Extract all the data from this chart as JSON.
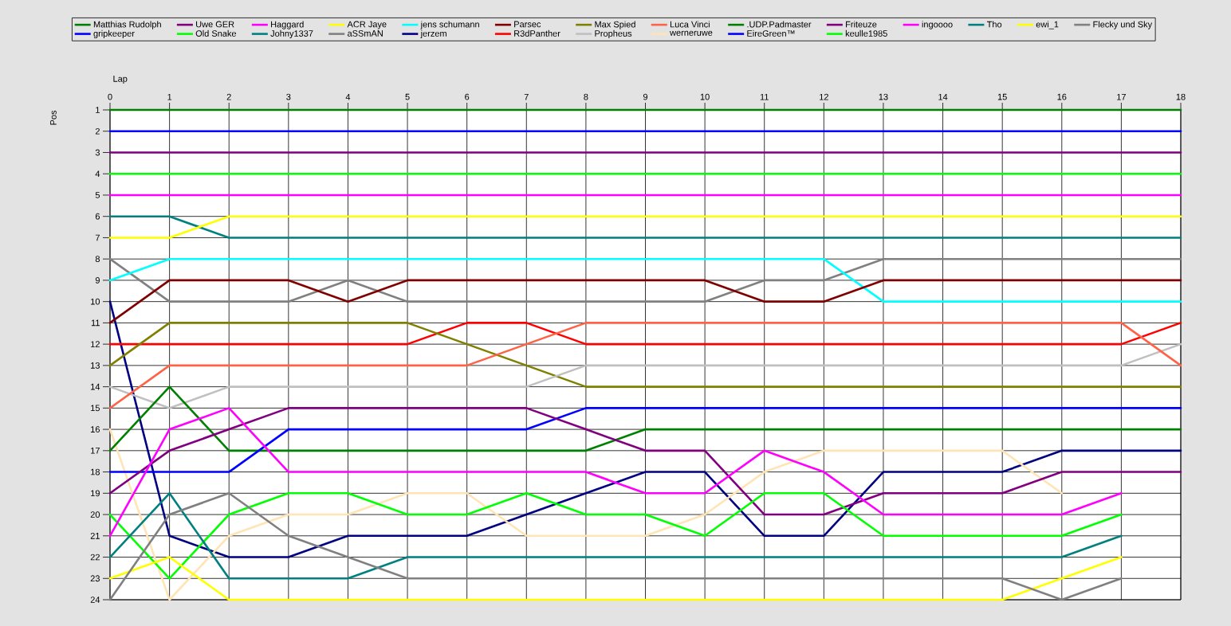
{
  "chart_data": {
    "type": "line",
    "xlabel": "Lap",
    "ylabel": "Pos",
    "x": [
      0,
      1,
      2,
      3,
      4,
      5,
      6,
      7,
      8,
      9,
      10,
      11,
      12,
      13,
      14,
      15,
      16,
      17,
      18
    ],
    "xlim": [
      0,
      18
    ],
    "xticks": [
      0,
      1,
      2,
      3,
      4,
      5,
      6,
      7,
      8,
      9,
      10,
      11,
      12,
      13,
      14,
      15,
      16,
      17,
      18
    ],
    "ylim": [
      24,
      1
    ],
    "yticks": [
      1,
      2,
      3,
      4,
      5,
      6,
      7,
      8,
      9,
      10,
      11,
      12,
      13,
      14,
      15,
      16,
      17,
      18,
      19,
      20,
      21,
      22,
      23,
      24
    ],
    "grid": true,
    "legend": "top",
    "series": [
      {
        "name": "Matthias Rudolph",
        "color": "#008000",
        "values": [
          1,
          1,
          1,
          1,
          1,
          1,
          1,
          1,
          1,
          1,
          1,
          1,
          1,
          1,
          1,
          1,
          1,
          1,
          1
        ]
      },
      {
        "name": "gripkeeper",
        "color": "#0000ff",
        "values": [
          2,
          2,
          2,
          2,
          2,
          2,
          2,
          2,
          2,
          2,
          2,
          2,
          2,
          2,
          2,
          2,
          2,
          2,
          2
        ]
      },
      {
        "name": "Uwe GER",
        "color": "#800080",
        "values": [
          3,
          3,
          3,
          3,
          3,
          3,
          3,
          3,
          3,
          3,
          3,
          3,
          3,
          3,
          3,
          3,
          3,
          3,
          3
        ]
      },
      {
        "name": "Old Snake",
        "color": "#00ff00",
        "values": [
          4,
          4,
          4,
          4,
          4,
          4,
          4,
          4,
          4,
          4,
          4,
          4,
          4,
          4,
          4,
          4,
          4,
          4,
          4
        ]
      },
      {
        "name": "Haggard",
        "color": "#ff00ff",
        "values": [
          5,
          5,
          5,
          5,
          5,
          5,
          5,
          5,
          5,
          5,
          5,
          5,
          5,
          5,
          5,
          5,
          5,
          5,
          5
        ]
      },
      {
        "name": "Johny1337",
        "color": "#008080",
        "values": [
          6,
          6,
          7,
          7,
          7,
          7,
          7,
          7,
          7,
          7,
          7,
          7,
          7,
          7,
          7,
          7,
          7,
          7,
          7
        ]
      },
      {
        "name": "ACR Jaye",
        "color": "#ffff00",
        "values": [
          7,
          7,
          6,
          6,
          6,
          6,
          6,
          6,
          6,
          6,
          6,
          6,
          6,
          6,
          6,
          6,
          6,
          6,
          6
        ]
      },
      {
        "name": "aSSmAN",
        "color": "#808080",
        "values": [
          8,
          10,
          10,
          10,
          9,
          10,
          10,
          10,
          10,
          10,
          10,
          9,
          9,
          8,
          8,
          8,
          8,
          8,
          8
        ]
      },
      {
        "name": "jens schumann",
        "color": "#00ffff",
        "values": [
          9,
          8,
          8,
          8,
          8,
          8,
          8,
          8,
          8,
          8,
          8,
          8,
          8,
          10,
          10,
          10,
          10,
          10,
          10
        ]
      },
      {
        "name": "jerzem",
        "color": "#000080",
        "values": [
          10,
          21,
          22,
          22,
          21,
          21,
          21,
          20,
          19,
          18,
          18,
          21,
          21,
          18,
          18,
          18,
          17,
          17,
          17
        ]
      },
      {
        "name": "Parsec",
        "color": "#800000",
        "values": [
          11,
          9,
          9,
          9,
          10,
          9,
          9,
          9,
          9,
          9,
          9,
          10,
          10,
          9,
          9,
          9,
          9,
          9,
          9
        ]
      },
      {
        "name": "R3dPanther",
        "color": "#ff0000",
        "values": [
          12,
          12,
          12,
          12,
          12,
          12,
          11,
          11,
          12,
          12,
          12,
          12,
          12,
          12,
          12,
          12,
          12,
          12,
          11
        ]
      },
      {
        "name": "Max Spied",
        "color": "#808000",
        "values": [
          13,
          11,
          11,
          11,
          11,
          11,
          12,
          13,
          14,
          14,
          14,
          14,
          14,
          14,
          14,
          14,
          14,
          14,
          14
        ]
      },
      {
        "name": "Propheus",
        "color": "#c0c0c0",
        "values": [
          14,
          15,
          14,
          14,
          14,
          14,
          14,
          14,
          13,
          13,
          13,
          13,
          13,
          13,
          13,
          13,
          13,
          13,
          12
        ]
      },
      {
        "name": "Luca Vinci",
        "color": "#ff6347",
        "values": [
          15,
          13,
          13,
          13,
          13,
          13,
          13,
          12,
          11,
          11,
          11,
          11,
          11,
          11,
          11,
          11,
          11,
          11,
          13
        ]
      },
      {
        "name": "werneruwe",
        "color": "#ffe4b5",
        "values": [
          16,
          24,
          21,
          20,
          20,
          19,
          19,
          21,
          21,
          21,
          20,
          18,
          17,
          17,
          17,
          17,
          19,
          null,
          null
        ]
      },
      {
        "name": ".UDP.Padmaster",
        "color": "#008000",
        "values": [
          17,
          14,
          17,
          17,
          17,
          17,
          17,
          17,
          17,
          16,
          16,
          16,
          16,
          16,
          16,
          16,
          16,
          16,
          16
        ]
      },
      {
        "name": "EireGreen™",
        "color": "#0000ff",
        "values": [
          18,
          18,
          18,
          16,
          16,
          16,
          16,
          16,
          15,
          15,
          15,
          15,
          15,
          15,
          15,
          15,
          15,
          15,
          15
        ]
      },
      {
        "name": "Friteuze",
        "color": "#800080",
        "values": [
          19,
          17,
          16,
          15,
          15,
          15,
          15,
          15,
          16,
          17,
          17,
          20,
          20,
          19,
          19,
          19,
          18,
          18,
          18
        ]
      },
      {
        "name": "keulle1985",
        "color": "#00ff00",
        "values": [
          20,
          23,
          20,
          19,
          19,
          20,
          20,
          19,
          20,
          20,
          21,
          19,
          19,
          21,
          21,
          21,
          21,
          20,
          null
        ]
      },
      {
        "name": "ingoooo",
        "color": "#ff00ff",
        "values": [
          21,
          16,
          15,
          18,
          18,
          18,
          18,
          18,
          18,
          19,
          19,
          17,
          18,
          20,
          20,
          20,
          20,
          19,
          null
        ]
      },
      {
        "name": "Tho",
        "color": "#008080",
        "values": [
          22,
          19,
          23,
          23,
          23,
          22,
          22,
          22,
          22,
          22,
          22,
          22,
          22,
          22,
          22,
          22,
          22,
          21,
          null
        ]
      },
      {
        "name": "ewi_1",
        "color": "#ffff00",
        "values": [
          23,
          22,
          24,
          24,
          24,
          24,
          24,
          24,
          24,
          24,
          24,
          24,
          24,
          24,
          24,
          24,
          23,
          22,
          null
        ]
      },
      {
        "name": "Flecky und Sky",
        "color": "#808080",
        "values": [
          24,
          20,
          19,
          21,
          22,
          23,
          23,
          23,
          23,
          23,
          23,
          23,
          23,
          23,
          23,
          23,
          24,
          23,
          null
        ]
      }
    ]
  }
}
